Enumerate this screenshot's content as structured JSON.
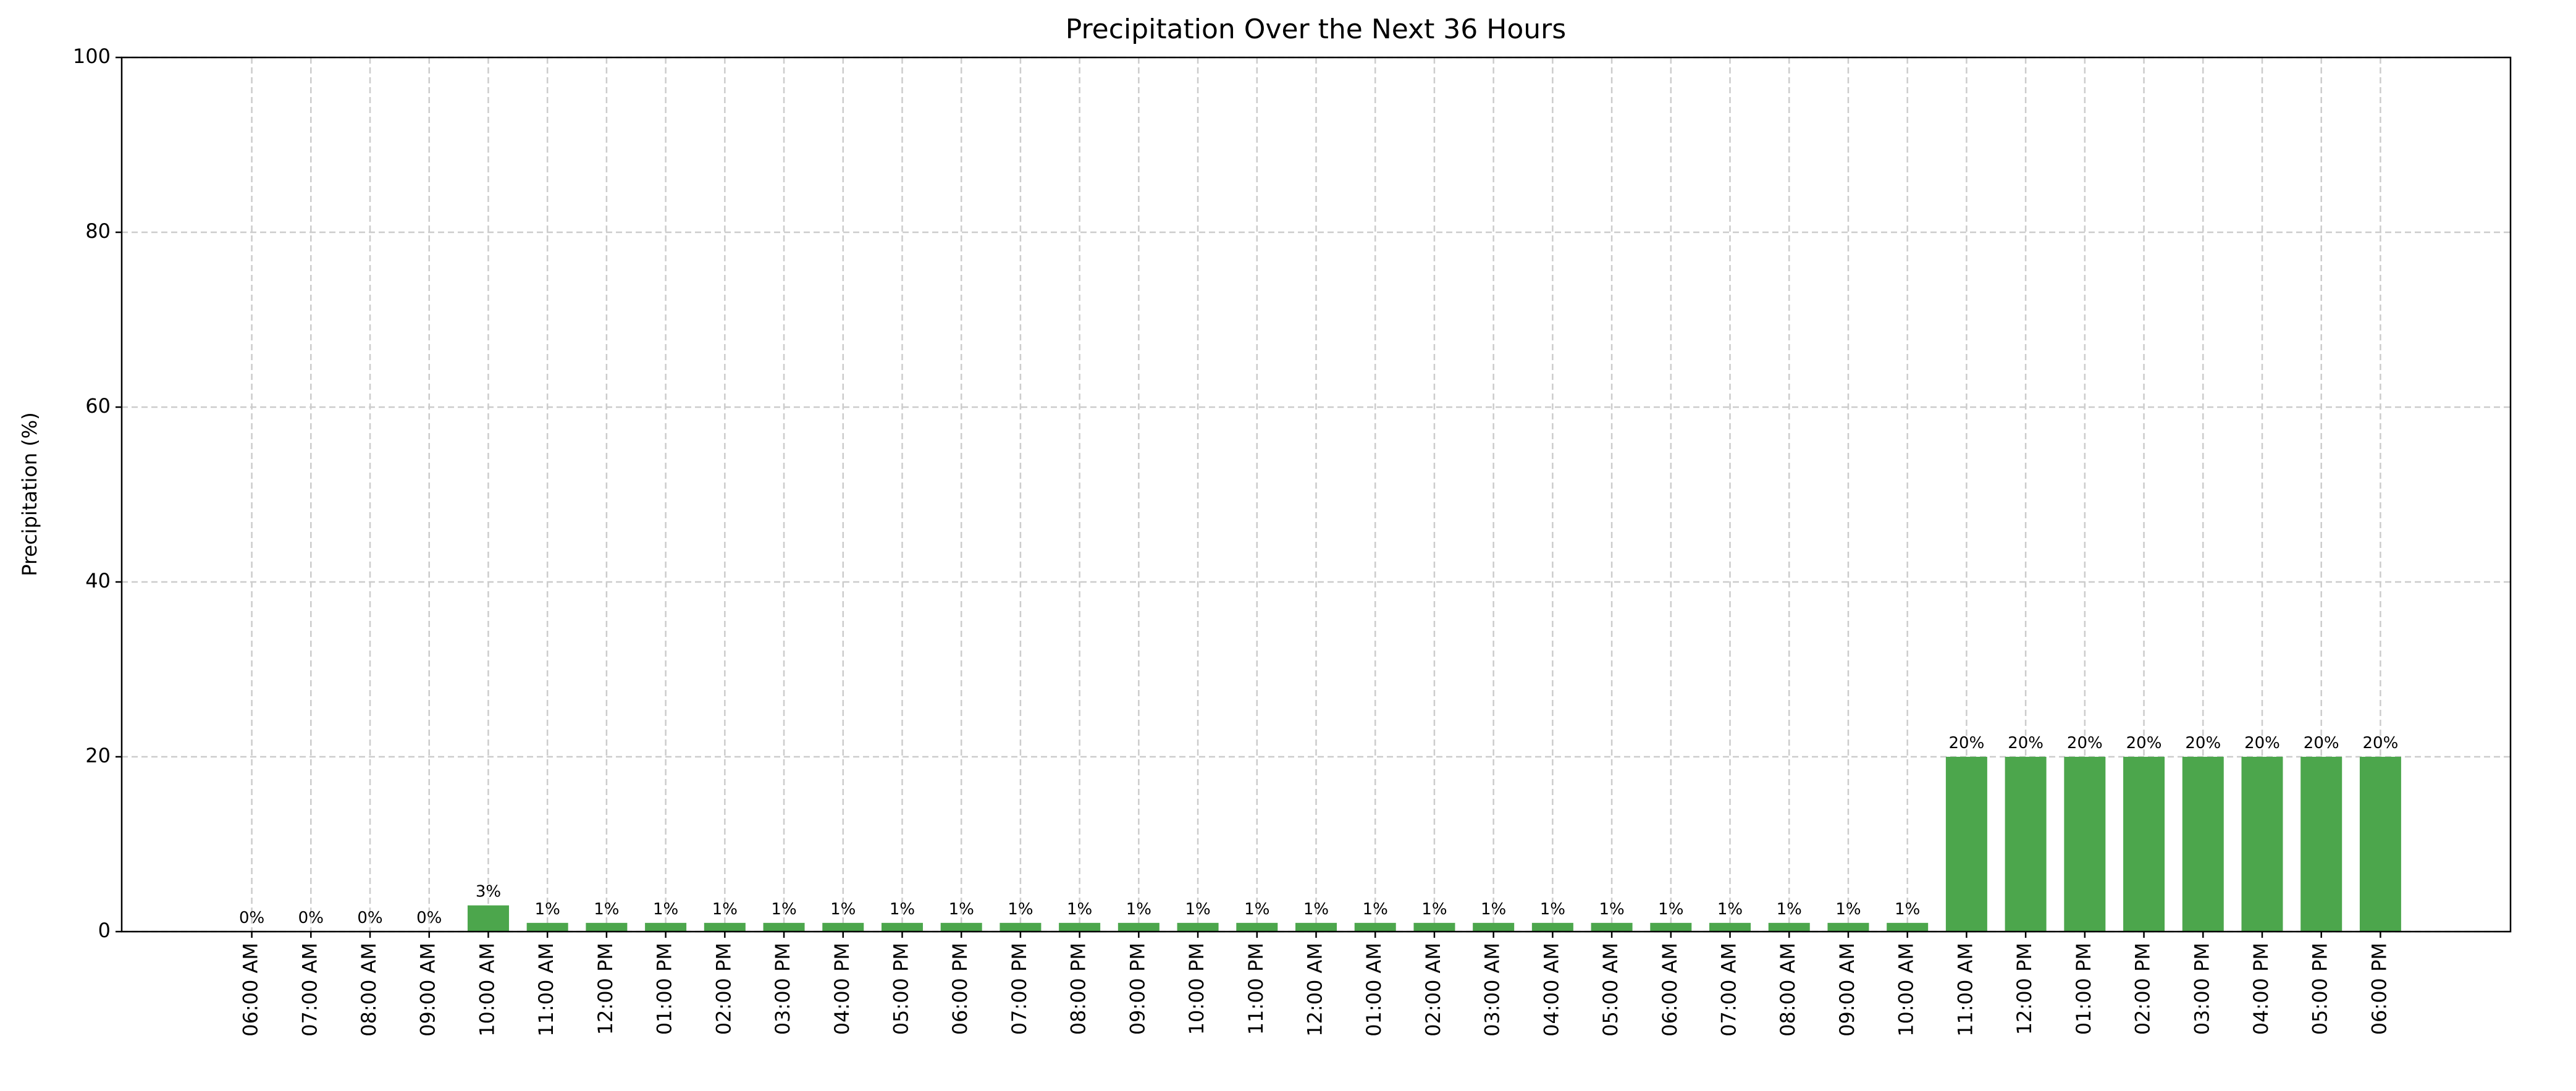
{
  "chart_data": {
    "type": "bar",
    "title": "Precipitation Over the Next 36 Hours",
    "y_label": "Precipitation (%)",
    "categories": [
      "06:00 AM",
      "07:00 AM",
      "08:00 AM",
      "09:00 AM",
      "10:00 AM",
      "11:00 AM",
      "12:00 PM",
      "01:00 PM",
      "02:00 PM",
      "03:00 PM",
      "04:00 PM",
      "05:00 PM",
      "06:00 PM",
      "07:00 PM",
      "08:00 PM",
      "09:00 PM",
      "10:00 PM",
      "11:00 PM",
      "12:00 AM",
      "01:00 AM",
      "02:00 AM",
      "03:00 AM",
      "04:00 AM",
      "05:00 AM",
      "06:00 AM",
      "07:00 AM",
      "08:00 AM",
      "09:00 AM",
      "10:00 AM",
      "11:00 AM",
      "12:00 PM",
      "01:00 PM",
      "02:00 PM",
      "03:00 PM",
      "04:00 PM",
      "05:00 PM",
      "06:00 PM"
    ],
    "values": [
      0,
      0,
      0,
      0,
      3,
      1,
      1,
      1,
      1,
      1,
      1,
      1,
      1,
      1,
      1,
      1,
      1,
      1,
      1,
      1,
      1,
      1,
      1,
      1,
      1,
      1,
      1,
      1,
      1,
      20,
      20,
      20,
      20,
      20,
      20,
      20,
      20
    ],
    "value_labels": [
      "0%",
      "0%",
      "0%",
      "0%",
      "3%",
      "1%",
      "1%",
      "1%",
      "1%",
      "1%",
      "1%",
      "1%",
      "1%",
      "1%",
      "1%",
      "1%",
      "1%",
      "1%",
      "1%",
      "1%",
      "1%",
      "1%",
      "1%",
      "1%",
      "1%",
      "1%",
      "1%",
      "1%",
      "1%",
      "20%",
      "20%",
      "20%",
      "20%",
      "20%",
      "20%",
      "20%",
      "20%"
    ],
    "color": "#4ca64c",
    "label_color": "#008000",
    "ylim": [
      0,
      100
    ],
    "yticks": [
      0,
      20,
      40,
      60,
      80,
      100
    ],
    "grid": true
  }
}
